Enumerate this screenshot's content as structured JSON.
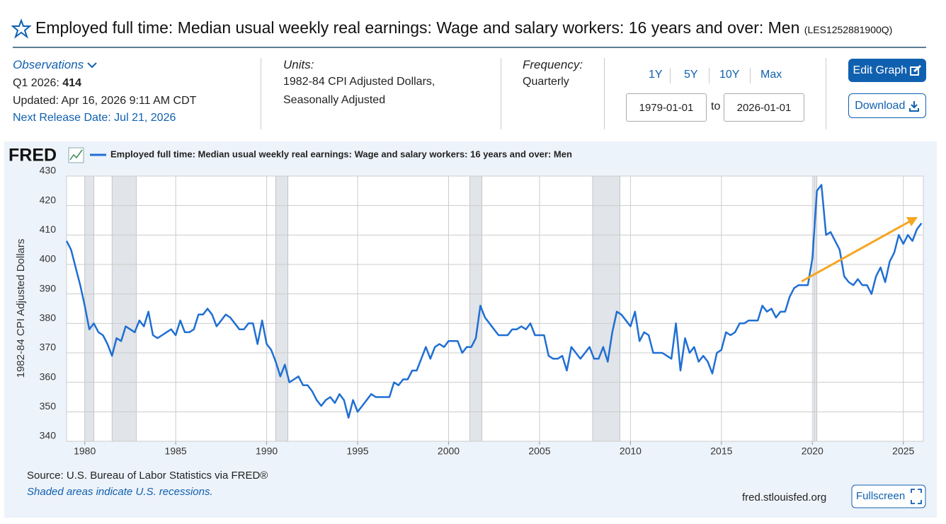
{
  "header": {
    "title": "Employed full time: Median usual weekly real earnings: Wage and salary workers: 16 years and over: Men",
    "series_id": "(LES1252881900Q)"
  },
  "observations": {
    "label": "Observations",
    "period": "Q1 2026:",
    "latest_value": 414,
    "updated": "Updated: Apr 16, 2026 9:11 AM CDT",
    "next_release": "Next Release Date: Jul 21, 2026"
  },
  "units": {
    "label": "Units:",
    "line1": "1982-84 CPI Adjusted Dollars,",
    "line2": "Seasonally Adjusted"
  },
  "frequency": {
    "label": "Frequency:",
    "value": "Quarterly"
  },
  "controls": {
    "ranges": [
      "1Y",
      "5Y",
      "10Y",
      "Max"
    ],
    "start": "1979-01-01",
    "to": "to",
    "end": "2026-01-01",
    "edit": "Edit Graph",
    "download": "Download"
  },
  "footer": {
    "logo": "FRED",
    "source": "Source: U.S. Bureau of Labor Statistics via FRED®",
    "note": "Shaded areas indicate U.S. recessions.",
    "site": "fred.stlouisfed.org",
    "fullscreen": "Fullscreen"
  },
  "chart_data": {
    "type": "line",
    "y_label": "1982-84 CPI Adjusted Dollars",
    "series": [
      {
        "name": "Employed full time: Median usual weekly real earnings: Wage and salary workers: 16 years and over: Men",
        "color": "#1f6fd3",
        "x": [
          1979,
          1979.25,
          1979.5,
          1979.75,
          1980,
          1980.25,
          1980.5,
          1980.75,
          1981,
          1981.25,
          1981.5,
          1981.75,
          1982,
          1982.25,
          1982.5,
          1982.75,
          1983,
          1983.25,
          1983.5,
          1983.75,
          1984,
          1984.25,
          1984.5,
          1984.75,
          1985,
          1985.25,
          1985.5,
          1985.75,
          1986,
          1986.25,
          1986.5,
          1986.75,
          1987,
          1987.25,
          1987.5,
          1987.75,
          1988,
          1988.25,
          1988.5,
          1988.75,
          1989,
          1989.25,
          1989.5,
          1989.75,
          1990,
          1990.25,
          1990.5,
          1990.75,
          1991,
          1991.25,
          1991.5,
          1991.75,
          1992,
          1992.25,
          1992.5,
          1992.75,
          1993,
          1993.25,
          1993.5,
          1993.75,
          1994,
          1994.25,
          1994.5,
          1994.75,
          1995,
          1995.25,
          1995.5,
          1995.75,
          1996,
          1996.25,
          1996.5,
          1996.75,
          1997,
          1997.25,
          1997.5,
          1997.75,
          1998,
          1998.25,
          1998.5,
          1998.75,
          1999,
          1999.25,
          1999.5,
          1999.75,
          2000,
          2000.25,
          2000.5,
          2000.75,
          2001,
          2001.25,
          2001.5,
          2001.75,
          2002,
          2002.25,
          2002.5,
          2002.75,
          2003,
          2003.25,
          2003.5,
          2003.75,
          2004,
          2004.25,
          2004.5,
          2004.75,
          2005,
          2005.25,
          2005.5,
          2005.75,
          2006,
          2006.25,
          2006.5,
          2006.75,
          2007,
          2007.25,
          2007.5,
          2007.75,
          2008,
          2008.25,
          2008.5,
          2008.75,
          2009,
          2009.25,
          2009.5,
          2009.75,
          2010,
          2010.25,
          2010.5,
          2010.75,
          2011,
          2011.25,
          2011.5,
          2011.75,
          2012,
          2012.25,
          2012.5,
          2012.75,
          2013,
          2013.25,
          2013.5,
          2013.75,
          2014,
          2014.25,
          2014.5,
          2014.75,
          2015,
          2015.25,
          2015.5,
          2015.75,
          2016,
          2016.25,
          2016.5,
          2016.75,
          2017,
          2017.25,
          2017.5,
          2017.75,
          2018,
          2018.25,
          2018.5,
          2018.75,
          2019,
          2019.25,
          2019.5,
          2019.75,
          2020,
          2020.25,
          2020.5,
          2020.75,
          2021,
          2021.25,
          2021.5,
          2021.75,
          2022,
          2022.25,
          2022.5,
          2022.75,
          2023,
          2023.25,
          2023.5,
          2023.75,
          2024,
          2024.25,
          2024.5,
          2024.75,
          2025,
          2025.25,
          2025.5,
          2025.75,
          2026
        ],
        "values": [
          408,
          405,
          399,
          393,
          386,
          378,
          380,
          377,
          376,
          373,
          369,
          375,
          374,
          379,
          378,
          377,
          381,
          379,
          384,
          376,
          375,
          376,
          377,
          378,
          376,
          381,
          377,
          377,
          378,
          383,
          383,
          385,
          383,
          379,
          381,
          383,
          382,
          380,
          378,
          378,
          380,
          380,
          373,
          381,
          373,
          371,
          367,
          362,
          366,
          360,
          361,
          362,
          359,
          359,
          357,
          354,
          352,
          354,
          355,
          353,
          356,
          354,
          348,
          354,
          350,
          352,
          354,
          356,
          355,
          355,
          355,
          355,
          360,
          359,
          361,
          361,
          364,
          364,
          368,
          372,
          368,
          372,
          373,
          372,
          374,
          374,
          374,
          370,
          372,
          372,
          375,
          386,
          382,
          380,
          378,
          376,
          376,
          376,
          378,
          378,
          379,
          378,
          380,
          376,
          376,
          376,
          369,
          368,
          368,
          369,
          364,
          372,
          370,
          368,
          370,
          372,
          368,
          368,
          372,
          367,
          377,
          384,
          383,
          381,
          379,
          384,
          374,
          377,
          376,
          370,
          370,
          370,
          369,
          368,
          380,
          364,
          375,
          370,
          372,
          367,
          369,
          367,
          363,
          370,
          371,
          377,
          376,
          377,
          380,
          380,
          381,
          381,
          381,
          386,
          384,
          385,
          382,
          384,
          384,
          389,
          392,
          393,
          393,
          393,
          402,
          425,
          427,
          410,
          411,
          408,
          405,
          396,
          394,
          393,
          395,
          393,
          393,
          390,
          396,
          399,
          394,
          401,
          404,
          410,
          407,
          410,
          408,
          412,
          414
        ]
      }
    ],
    "recessions": [
      [
        1980,
        1980.5
      ],
      [
        1981.5,
        1982.83
      ],
      [
        1990.5,
        1991.17
      ],
      [
        2001.17,
        2001.83
      ],
      [
        2007.92,
        2009.42
      ],
      [
        2020.08,
        2020.25
      ]
    ],
    "xlim": [
      1979,
      2026.1
    ],
    "xticks": [
      1980,
      1985,
      1990,
      1995,
      2000,
      2005,
      2010,
      2015,
      2020,
      2025
    ],
    "ylim": [
      340,
      430
    ],
    "yticks": [
      340,
      350,
      360,
      370,
      380,
      390,
      400,
      410,
      420,
      430
    ],
    "grid": true
  }
}
